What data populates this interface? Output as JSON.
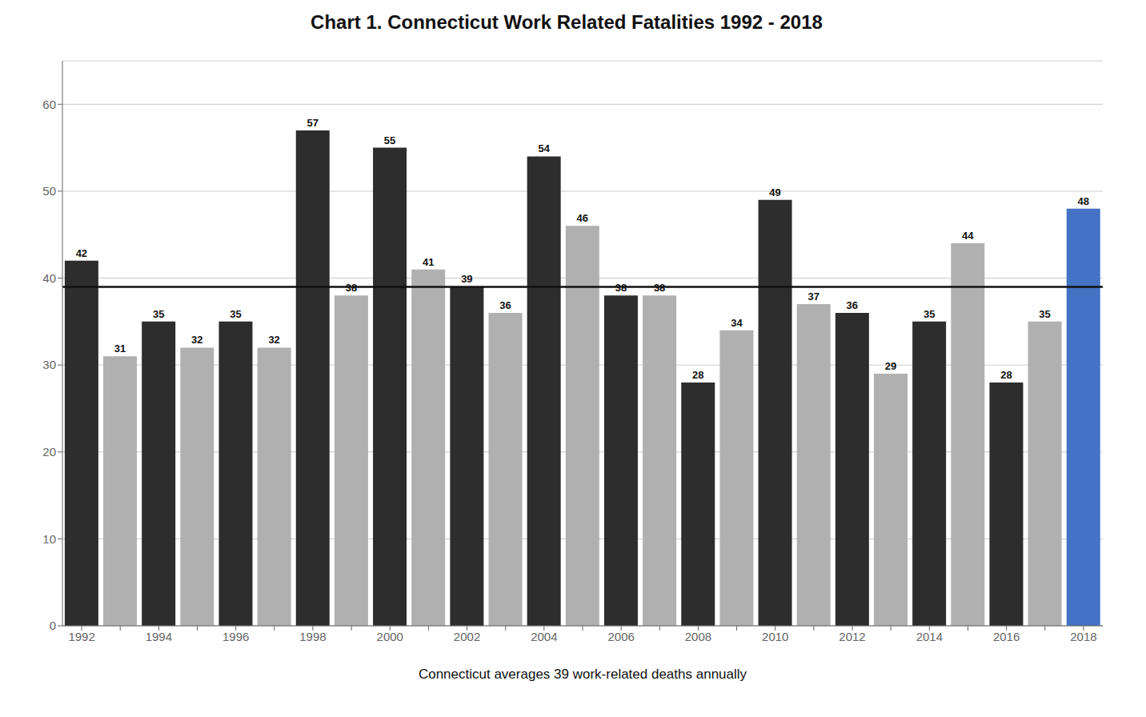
{
  "chart_data": {
    "type": "bar",
    "title": "Chart 1. Connecticut Work Related Fatalities 1992 - 2018",
    "xlabel": "Connecticut averages 39 work-related deaths annually",
    "categories": [
      "1992",
      null,
      "1994",
      null,
      "1996",
      null,
      "1998",
      null,
      "2000",
      null,
      "2002",
      null,
      "2004",
      null,
      "2006",
      null,
      "2008",
      null,
      "2010",
      null,
      "2012",
      null,
      "2014",
      null,
      "2016",
      null,
      "2018"
    ],
    "values": [
      42,
      31,
      35,
      32,
      35,
      32,
      57,
      38,
      55,
      41,
      39,
      36,
      54,
      46,
      38,
      38,
      28,
      34,
      49,
      37,
      36,
      29,
      35,
      44,
      28,
      35,
      48
    ],
    "colors": [
      "#2d2d2d",
      "#b0b0b0",
      "#2d2d2d",
      "#b0b0b0",
      "#2d2d2d",
      "#b0b0b0",
      "#2d2d2d",
      "#b0b0b0",
      "#2d2d2d",
      "#b0b0b0",
      "#2d2d2d",
      "#b0b0b0",
      "#2d2d2d",
      "#b0b0b0",
      "#2d2d2d",
      "#b0b0b0",
      "#2d2d2d",
      "#b0b0b0",
      "#2d2d2d",
      "#b0b0b0",
      "#2d2d2d",
      "#b0b0b0",
      "#2d2d2d",
      "#b0b0b0",
      "#2d2d2d",
      "#b0b0b0",
      "#4472c4"
    ],
    "average_line": {
      "value": 39,
      "color": "#111111"
    },
    "ylim": [
      0,
      65
    ],
    "yticks": [
      0,
      10,
      20,
      30,
      40,
      50,
      60
    ],
    "grid": true,
    "data_labels": true
  }
}
